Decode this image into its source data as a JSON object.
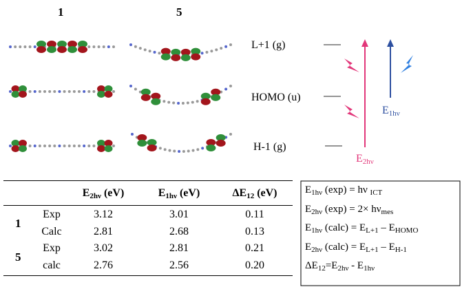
{
  "molecules": [
    {
      "label": "1"
    },
    {
      "label": "5"
    }
  ],
  "levels": [
    "L+1 (g)",
    "HOMO (u)",
    "H-1 (g)"
  ],
  "transitions": [
    {
      "label": [
        {
          "text": "E"
        },
        {
          "text": "1hν",
          "sub": true
        }
      ]
    },
    {
      "label": [
        {
          "text": "E"
        },
        {
          "text": "2hν",
          "sub": true
        }
      ]
    }
  ],
  "table": {
    "header": [
      [
        {
          "text": "E"
        },
        {
          "text": "2hν",
          "sub": true
        },
        {
          "text": " (eV)"
        }
      ],
      [
        {
          "text": "E"
        },
        {
          "text": "1hν",
          "sub": true
        },
        {
          "text": " (eV)"
        }
      ],
      [
        {
          "text": "ΔE"
        },
        {
          "text": "12",
          "sub": true
        },
        {
          "text": " (eV)"
        }
      ]
    ],
    "groups": [
      {
        "label": "1",
        "rows": [
          {
            "label": "Exp",
            "values": [
              "3.12",
              "3.01",
              "0.11"
            ]
          },
          {
            "label": "Calc",
            "values": [
              "2.81",
              "2.68",
              "0.13"
            ]
          }
        ]
      },
      {
        "label": "5",
        "rows": [
          {
            "label": "Exp",
            "values": [
              "3.02",
              "2.81",
              "0.21"
            ]
          },
          {
            "label": "calc",
            "values": [
              "2.76",
              "2.56",
              "0.20"
            ]
          }
        ]
      }
    ]
  },
  "equations": [
    [
      {
        "text": "E"
      },
      {
        "text": "1hν",
        "sub": true
      },
      {
        "text": " (exp) = hν "
      },
      {
        "text": "ICT",
        "sub": true
      }
    ],
    [
      {
        "text": "E"
      },
      {
        "text": "2hν",
        "sub": true
      },
      {
        "text": " (exp) = 2× hν"
      },
      {
        "text": "mes",
        "sub": true
      }
    ],
    [
      {
        "text": "E"
      },
      {
        "text": "1hν",
        "sub": true
      },
      {
        "text": " (calc) = E"
      },
      {
        "text": "L+1",
        "sub": true
      },
      {
        "text": " – E"
      },
      {
        "text": "HOMO",
        "sub": true
      }
    ],
    [
      {
        "text": "E"
      },
      {
        "text": "2hν",
        "sub": true
      },
      {
        "text": " (calc) = E"
      },
      {
        "text": "L+1",
        "sub": true
      },
      {
        "text": " – E"
      },
      {
        "text": "H-1",
        "sub": true
      }
    ],
    [
      {
        "text": "ΔE"
      },
      {
        "text": "12",
        "sub": true
      },
      {
        "text": "=E"
      },
      {
        "text": "2hν",
        "sub": true
      },
      {
        "text": " - E"
      },
      {
        "text": "1hν",
        "sub": true
      }
    ]
  ]
}
